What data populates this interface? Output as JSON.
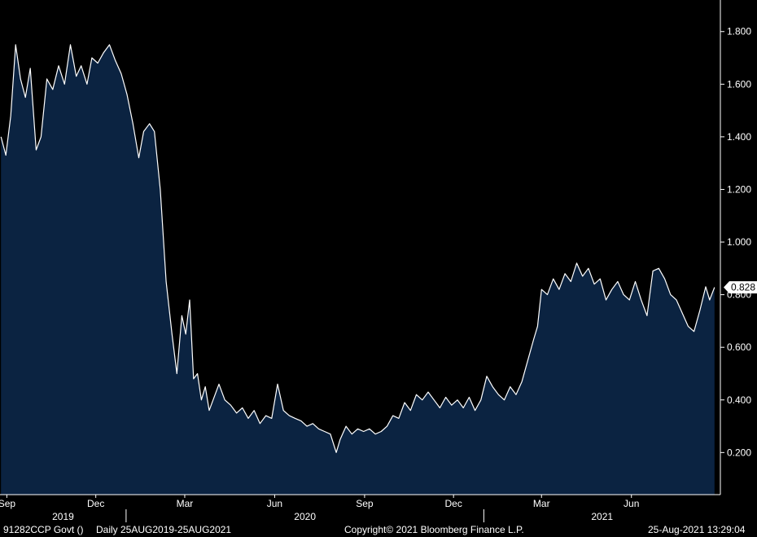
{
  "chart_data": {
    "type": "area",
    "title": "",
    "xlabel": "",
    "ylabel": "",
    "ylim": [
      0.04,
      1.92
    ],
    "yticks": [
      "0.200",
      "0.400",
      "0.600",
      "0.800",
      "1.000",
      "1.200",
      "1.400",
      "1.600",
      "1.800"
    ],
    "ytick_values": [
      0.2,
      0.4,
      0.6,
      0.8,
      1.0,
      1.2,
      1.4,
      1.6,
      1.8
    ],
    "xlim": [
      "2019-08-25",
      "2021-08-31"
    ],
    "month_ticks": [
      {
        "label": "Sep",
        "date": "2019-09-01"
      },
      {
        "label": "Dec",
        "date": "2019-12-01"
      },
      {
        "label": "Mar",
        "date": "2020-03-01"
      },
      {
        "label": "Jun",
        "date": "2020-06-01"
      },
      {
        "label": "Sep",
        "date": "2020-09-01"
      },
      {
        "label": "Dec",
        "date": "2020-12-01"
      },
      {
        "label": "Mar",
        "date": "2021-03-01"
      },
      {
        "label": "Jun",
        "date": "2021-06-01"
      }
    ],
    "year_labels": [
      {
        "label": "2019",
        "start": "2019-08-25",
        "end": "2020-01-01"
      },
      {
        "label": "2020",
        "start": "2020-01-01",
        "end": "2021-01-01"
      },
      {
        "label": "2021",
        "start": "2021-01-01",
        "end": "2021-08-31"
      }
    ],
    "last_value_label": "0.828",
    "last_value": 0.828,
    "colors": {
      "background": "#000000",
      "fill": "#0b2341",
      "line": "#ffffff",
      "grid": "#3a3a3a",
      "axis": "#ffffff",
      "label_box": "#ffffff",
      "label_text": "#000000"
    },
    "grid": false,
    "series": [
      {
        "x": [
          "2019-08-26",
          "2019-08-31",
          "2019-09-05",
          "2019-09-10",
          "2019-09-15",
          "2019-09-20",
          "2019-09-25",
          "2019-10-01",
          "2019-10-06",
          "2019-10-12",
          "2019-10-18",
          "2019-10-24",
          "2019-10-30",
          "2019-11-05",
          "2019-11-11",
          "2019-11-16",
          "2019-11-22",
          "2019-11-27",
          "2019-12-03",
          "2019-12-09",
          "2019-12-15",
          "2019-12-21",
          "2019-12-27",
          "2020-01-02",
          "2020-01-08",
          "2020-01-14",
          "2020-01-19",
          "2020-01-25",
          "2020-01-30",
          "2020-02-05",
          "2020-02-11",
          "2020-02-17",
          "2020-02-22",
          "2020-02-27",
          "2020-03-02",
          "2020-03-06",
          "2020-03-10",
          "2020-03-14",
          "2020-03-18",
          "2020-03-22",
          "2020-03-26",
          "2020-03-30",
          "2020-04-05",
          "2020-04-11",
          "2020-04-17",
          "2020-04-23",
          "2020-04-29",
          "2020-05-05",
          "2020-05-11",
          "2020-05-17",
          "2020-05-23",
          "2020-05-29",
          "2020-06-04",
          "2020-06-10",
          "2020-06-16",
          "2020-06-22",
          "2020-06-28",
          "2020-07-04",
          "2020-07-10",
          "2020-07-16",
          "2020-07-22",
          "2020-07-28",
          "2020-08-03",
          "2020-08-07",
          "2020-08-13",
          "2020-08-19",
          "2020-08-25",
          "2020-08-31",
          "2020-09-06",
          "2020-09-12",
          "2020-09-18",
          "2020-09-24",
          "2020-09-30",
          "2020-10-06",
          "2020-10-12",
          "2020-10-18",
          "2020-10-24",
          "2020-10-30",
          "2020-11-05",
          "2020-11-11",
          "2020-11-17",
          "2020-11-23",
          "2020-11-29",
          "2020-12-05",
          "2020-12-11",
          "2020-12-17",
          "2020-12-23",
          "2020-12-29",
          "2021-01-04",
          "2021-01-10",
          "2021-01-16",
          "2021-01-22",
          "2021-01-28",
          "2021-02-03",
          "2021-02-09",
          "2021-02-15",
          "2021-02-21",
          "2021-02-25",
          "2021-03-01",
          "2021-03-07",
          "2021-03-13",
          "2021-03-19",
          "2021-03-25",
          "2021-03-31",
          "2021-04-06",
          "2021-04-12",
          "2021-04-18",
          "2021-04-24",
          "2021-04-30",
          "2021-05-06",
          "2021-05-12",
          "2021-05-18",
          "2021-05-24",
          "2021-05-30",
          "2021-06-05",
          "2021-06-11",
          "2021-06-17",
          "2021-06-23",
          "2021-06-29",
          "2021-07-05",
          "2021-07-11",
          "2021-07-17",
          "2021-07-23",
          "2021-07-29",
          "2021-08-04",
          "2021-08-10",
          "2021-08-16",
          "2021-08-20",
          "2021-08-25"
        ],
        "values": [
          1.4,
          1.33,
          1.48,
          1.75,
          1.62,
          1.55,
          1.66,
          1.35,
          1.4,
          1.62,
          1.58,
          1.67,
          1.6,
          1.75,
          1.63,
          1.67,
          1.6,
          1.7,
          1.68,
          1.72,
          1.75,
          1.69,
          1.64,
          1.56,
          1.45,
          1.32,
          1.42,
          1.45,
          1.42,
          1.2,
          0.85,
          0.65,
          0.5,
          0.72,
          0.65,
          0.78,
          0.48,
          0.5,
          0.4,
          0.45,
          0.36,
          0.4,
          0.46,
          0.4,
          0.38,
          0.35,
          0.37,
          0.33,
          0.36,
          0.31,
          0.34,
          0.33,
          0.46,
          0.36,
          0.34,
          0.33,
          0.32,
          0.3,
          0.31,
          0.29,
          0.28,
          0.27,
          0.2,
          0.25,
          0.3,
          0.27,
          0.29,
          0.28,
          0.29,
          0.27,
          0.28,
          0.3,
          0.34,
          0.33,
          0.39,
          0.36,
          0.42,
          0.4,
          0.43,
          0.4,
          0.37,
          0.41,
          0.38,
          0.4,
          0.37,
          0.41,
          0.36,
          0.4,
          0.49,
          0.45,
          0.42,
          0.4,
          0.45,
          0.42,
          0.47,
          0.55,
          0.63,
          0.68,
          0.82,
          0.8,
          0.86,
          0.82,
          0.88,
          0.85,
          0.92,
          0.87,
          0.9,
          0.84,
          0.86,
          0.78,
          0.82,
          0.85,
          0.8,
          0.78,
          0.85,
          0.78,
          0.72,
          0.89,
          0.9,
          0.86,
          0.8,
          0.78,
          0.73,
          0.68,
          0.66,
          0.74,
          0.83,
          0.78,
          0.828
        ]
      }
    ]
  },
  "footer": {
    "security": "91282CCP Govt ()",
    "range": "Daily 25AUG2019-25AUG2021",
    "copyright": "Copyright© 2021 Bloomberg Finance L.P.",
    "timestamp": "25-Aug-2021 13:29:04"
  }
}
